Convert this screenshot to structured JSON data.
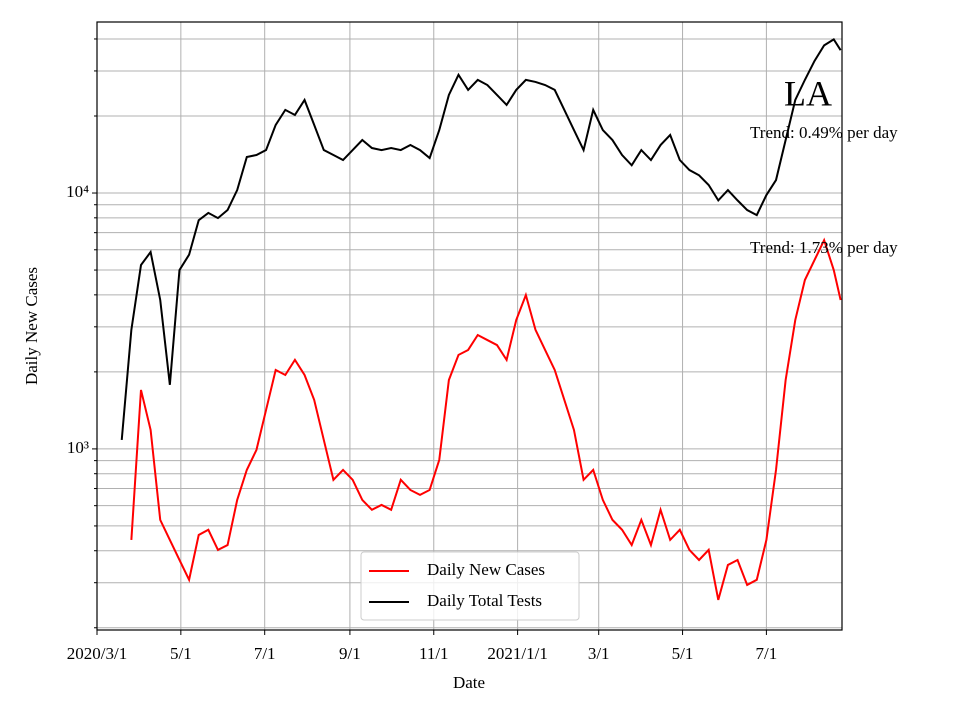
{
  "chart_data": {
    "type": "line",
    "annotations": {
      "region": "LA",
      "trend_tests": "Trend: 0.49% per day",
      "trend_cases": "Trend: 1.73% per day"
    },
    "xlabel": "Date",
    "ylabel": "Daily New Cases",
    "log_y": true,
    "grid": true,
    "legend_loc": "lower center",
    "xlim": [
      "2020-03-01",
      "2021-08-25"
    ],
    "xticks": [
      {
        "value": "2020-03-01",
        "label": "2020/3/1"
      },
      {
        "value": "2020-05-01",
        "label": "5/1"
      },
      {
        "value": "2020-07-01",
        "label": "7/1"
      },
      {
        "value": "2020-09-01",
        "label": "9/1"
      },
      {
        "value": "2020-11-01",
        "label": "11/1"
      },
      {
        "value": "2021-01-01",
        "label": "2021/1/1"
      },
      {
        "value": "2021-03-01",
        "label": "3/1"
      },
      {
        "value": "2021-05-01",
        "label": "5/1"
      },
      {
        "value": "2021-07-01",
        "label": "7/1"
      }
    ],
    "ylim": [
      196,
      46600
    ],
    "yticks": [
      {
        "value": 1000,
        "label": "10³"
      },
      {
        "value": 10000,
        "label": "10⁴"
      }
    ],
    "yminorticks": [
      200,
      300,
      400,
      500,
      600,
      700,
      800,
      900,
      2000,
      3000,
      4000,
      5000,
      6000,
      7000,
      8000,
      9000,
      20000,
      30000,
      40000
    ],
    "x": [
      "2020-03-19",
      "2020-03-26",
      "2020-04-02",
      "2020-04-09",
      "2020-04-16",
      "2020-04-23",
      "2020-04-30",
      "2020-05-07",
      "2020-05-14",
      "2020-05-21",
      "2020-05-28",
      "2020-06-04",
      "2020-06-11",
      "2020-06-18",
      "2020-06-25",
      "2020-07-02",
      "2020-07-09",
      "2020-07-16",
      "2020-07-23",
      "2020-07-30",
      "2020-08-06",
      "2020-08-13",
      "2020-08-20",
      "2020-08-27",
      "2020-09-03",
      "2020-09-10",
      "2020-09-17",
      "2020-09-24",
      "2020-10-01",
      "2020-10-08",
      "2020-10-15",
      "2020-10-22",
      "2020-10-29",
      "2020-11-05",
      "2020-11-12",
      "2020-11-19",
      "2020-11-26",
      "2020-12-03",
      "2020-12-10",
      "2020-12-17",
      "2020-12-24",
      "2020-12-31",
      "2021-01-07",
      "2021-01-14",
      "2021-01-21",
      "2021-01-28",
      "2021-02-04",
      "2021-02-11",
      "2021-02-18",
      "2021-02-25",
      "2021-03-04",
      "2021-03-11",
      "2021-03-18",
      "2021-03-25",
      "2021-04-01",
      "2021-04-08",
      "2021-04-15",
      "2021-04-22",
      "2021-04-29",
      "2021-05-06",
      "2021-05-13",
      "2021-05-20",
      "2021-05-27",
      "2021-06-03",
      "2021-06-10",
      "2021-06-17",
      "2021-06-24",
      "2021-07-01",
      "2021-07-08",
      "2021-07-15",
      "2021-07-22",
      "2021-07-29",
      "2021-08-05",
      "2021-08-12",
      "2021-08-19",
      "2021-08-24"
    ],
    "series": [
      {
        "name": "Daily New Cases",
        "color": "#ff0000",
        "values": [
          null,
          441,
          1700,
          1186,
          528,
          441,
          368,
          308,
          461,
          483,
          403,
          421,
          632,
          828,
          991,
          1420,
          2035,
          1945,
          2228,
          1945,
          1554,
          1084,
          757,
          828,
          757,
          632,
          578,
          604,
          578,
          757,
          691,
          661,
          691,
          906,
          1859,
          2330,
          2436,
          2787,
          2663,
          2546,
          2228,
          3188,
          3993,
          2920,
          2436,
          2035,
          1554,
          1186,
          757,
          828,
          632,
          528,
          483,
          421,
          528,
          421,
          578,
          441,
          483,
          403,
          368,
          403,
          257,
          352,
          368,
          294,
          308,
          441,
          828,
          1859,
          3188,
          4571,
          5470,
          6540,
          5000,
          3820
        ]
      },
      {
        "name": "Daily Total Tests",
        "color": "#000000",
        "values": [
          1084,
          2920,
          5230,
          5880,
          3820,
          1780,
          5000,
          5740,
          7830,
          8360,
          7980,
          8580,
          10270,
          13830,
          14080,
          14720,
          18460,
          21130,
          20190,
          23100,
          18460,
          14720,
          14080,
          13460,
          14720,
          16110,
          14990,
          14720,
          14990,
          14720,
          15400,
          14720,
          13700,
          17620,
          24170,
          28980,
          25290,
          27680,
          26430,
          24170,
          22100,
          25290,
          27680,
          27180,
          26430,
          25290,
          21130,
          17620,
          14720,
          21130,
          17620,
          16110,
          14080,
          12840,
          14720,
          13460,
          15400,
          16860,
          13460,
          12300,
          11730,
          10750,
          9360,
          10270,
          9360,
          8580,
          8200,
          9820,
          11240,
          16110,
          23100,
          27680,
          32820,
          37760,
          39860,
          36170
        ]
      }
    ]
  }
}
